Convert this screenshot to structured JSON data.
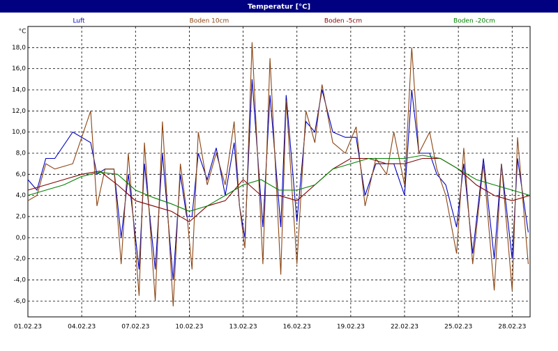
{
  "chart_data": {
    "type": "line",
    "title": "Temperatur [°C]",
    "y_unit": "°C",
    "xlim": [
      0,
      28
    ],
    "ylim": [
      -7.5,
      20
    ],
    "grid": true,
    "xticks": [
      {
        "value": 0,
        "label": "01.02.23"
      },
      {
        "value": 3,
        "label": "04.02.23"
      },
      {
        "value": 6,
        "label": "07.02.23"
      },
      {
        "value": 9,
        "label": "10.02.23"
      },
      {
        "value": 12,
        "label": "13.02.23"
      },
      {
        "value": 15,
        "label": "16.02.23"
      },
      {
        "value": 18,
        "label": "19.02.23"
      },
      {
        "value": 21,
        "label": "22.02.23"
      },
      {
        "value": 24,
        "label": "25.02.23"
      },
      {
        "value": 27,
        "label": "28.02.23"
      }
    ],
    "yticks": [
      {
        "value": -6,
        "label": "-6,0"
      },
      {
        "value": -4,
        "label": "-4,0"
      },
      {
        "value": -2,
        "label": "-2,0"
      },
      {
        "value": 0,
        "label": "0,0"
      },
      {
        "value": 2,
        "label": "2,0"
      },
      {
        "value": 4,
        "label": "4,0"
      },
      {
        "value": 6,
        "label": "6,0"
      },
      {
        "value": 8,
        "label": "8,0"
      },
      {
        "value": 10,
        "label": "10,0"
      },
      {
        "value": 12,
        "label": "12,0"
      },
      {
        "value": 14,
        "label": "14,0"
      },
      {
        "value": 16,
        "label": "16,0"
      },
      {
        "value": 18,
        "label": "18,0"
      }
    ],
    "series": [
      {
        "name": "Luft",
        "color": "#0000c0",
        "x": [
          0,
          0.5,
          1,
          1.5,
          2.5,
          3.5,
          3.85,
          4.3,
          4.8,
          5.2,
          5.6,
          6.2,
          6.5,
          7.1,
          7.5,
          8.1,
          8.5,
          8.85,
          9.15,
          9.5,
          10,
          10.5,
          11,
          11.5,
          11.8,
          12.1,
          12.5,
          13.1,
          13.5,
          14.1,
          14.4,
          15,
          15.5,
          16,
          16.4,
          17,
          17.7,
          18.3,
          18.8,
          19.4,
          20,
          20.4,
          21,
          21.4,
          21.8,
          22.4,
          22.8,
          23.3,
          23.9,
          24.3,
          24.8,
          25.4,
          26,
          26.4,
          27,
          27.3,
          27.9
        ],
        "values": [
          5.5,
          4.5,
          7.5,
          7.5,
          10,
          9,
          6,
          6.5,
          6.5,
          0,
          6,
          -3,
          7,
          -3,
          8,
          -4,
          6,
          2,
          2,
          8,
          5.5,
          8.5,
          4,
          9,
          3,
          0,
          15,
          1,
          13.5,
          1,
          13.5,
          1.5,
          11,
          10,
          14,
          10,
          9.5,
          9.5,
          4,
          7,
          7,
          7,
          4,
          14,
          8,
          8,
          6,
          5,
          1,
          7,
          -1.5,
          7.5,
          -2,
          7,
          -2,
          7.5,
          0.5
        ]
      },
      {
        "name": "Boden 10cm",
        "color": "#8b4513",
        "x": [
          0,
          0.5,
          1,
          1.5,
          2.5,
          3.5,
          3.85,
          4.3,
          4.8,
          5.2,
          5.6,
          6.2,
          6.5,
          7.1,
          7.5,
          8.1,
          8.5,
          8.85,
          9.15,
          9.5,
          10,
          10.5,
          11,
          11.5,
          11.8,
          12.1,
          12.5,
          13.1,
          13.5,
          14.1,
          14.4,
          15,
          15.5,
          16,
          16.4,
          17,
          17.7,
          18.3,
          18.8,
          19.4,
          20,
          20.4,
          21,
          21.4,
          21.8,
          22.4,
          22.8,
          23.3,
          23.9,
          24.3,
          24.8,
          25.4,
          26,
          26.4,
          27,
          27.3,
          27.9
        ],
        "values": [
          3.5,
          4,
          7,
          6.5,
          7,
          12,
          3,
          6.5,
          6.5,
          -2.5,
          8,
          -5.5,
          9,
          -6,
          11,
          -6.5,
          7,
          2.5,
          -3,
          10,
          5,
          8,
          5,
          11,
          3,
          -1,
          18.5,
          -2.5,
          17,
          -3.5,
          13,
          -2.5,
          12,
          9,
          14.5,
          9,
          8,
          10.5,
          3,
          7.5,
          6,
          10,
          5,
          18,
          8,
          10,
          6.5,
          4,
          -1.5,
          8.5,
          -2.5,
          7,
          -5,
          7,
          -5,
          9.5,
          -2.5
        ]
      },
      {
        "name": "Boden -5cm",
        "color": "#800000",
        "x": [
          0,
          1,
          2,
          3,
          4,
          5,
          6,
          7,
          8,
          9,
          10,
          11,
          12,
          13,
          14,
          15,
          16,
          17,
          18,
          19,
          20,
          21,
          22,
          23,
          24,
          25,
          26,
          27,
          28
        ],
        "values": [
          4.5,
          5,
          5.5,
          6,
          6.3,
          5,
          3.5,
          3,
          2.5,
          1.5,
          3,
          3.5,
          5.5,
          4,
          4,
          3.5,
          5,
          6.5,
          7.5,
          7.5,
          7,
          7,
          7.5,
          7.5,
          6.5,
          5,
          4,
          3.5,
          4
        ]
      },
      {
        "name": "Boden -20cm",
        "color": "#008000",
        "x": [
          0,
          1,
          2,
          3,
          4,
          5,
          6,
          7,
          8,
          9,
          10,
          11,
          12,
          13,
          14,
          15,
          16,
          17,
          18,
          19,
          20,
          21,
          22,
          23,
          24,
          25,
          26,
          27,
          28
        ],
        "values": [
          4,
          4.5,
          5,
          5.8,
          6.2,
          6,
          4.5,
          3.8,
          3.2,
          2.5,
          3,
          4,
          5,
          5.5,
          4.5,
          4.5,
          5,
          6.5,
          7,
          7.5,
          7.5,
          7.5,
          7.8,
          7.5,
          6.5,
          5.5,
          5,
          4.5,
          4
        ]
      }
    ]
  }
}
